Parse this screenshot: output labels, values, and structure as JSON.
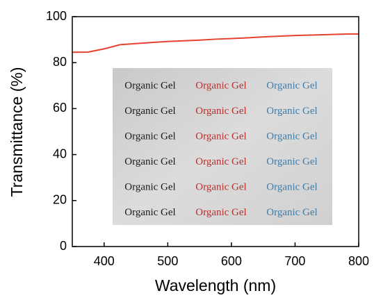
{
  "chart_data": {
    "type": "line",
    "xlabel": "Wavelength (nm)",
    "ylabel": "Transmittance (%)",
    "x": [
      350,
      375,
      400,
      425,
      450,
      475,
      500,
      525,
      550,
      575,
      600,
      625,
      650,
      675,
      700,
      725,
      750,
      775,
      800
    ],
    "series": [
      {
        "color": "#e8412f",
        "values": [
          84.5,
          84.6,
          86.0,
          87.8,
          88.3,
          88.8,
          89.2,
          89.5,
          89.8,
          90.2,
          90.5,
          90.8,
          91.2,
          91.5,
          91.8,
          92.0,
          92.2,
          92.4,
          92.5
        ]
      }
    ],
    "xlim": [
      350,
      800
    ],
    "xticks": [
      400,
      500,
      600,
      700,
      800
    ],
    "ylim": [
      0,
      100
    ],
    "yticks": [
      0,
      20,
      40,
      60,
      80,
      100
    ],
    "inset": {
      "rows": [
        [
          "Organic Gel",
          "Organic Gel",
          "Organic Gel"
        ],
        [
          "Organic Gel",
          "Organic Gel",
          "Organic Gel"
        ],
        [
          "Organic Gel",
          "Organic Gel",
          "Organic Gel"
        ],
        [
          "Organic Gel",
          "Organic Gel",
          "Organic Gel"
        ],
        [
          "Organic Gel",
          "Organic Gel",
          "Organic Gel"
        ],
        [
          "Organic Gel",
          "Organic Gel",
          "Organic Gel"
        ]
      ],
      "colors": [
        "#1a1a1a",
        "#b3302f",
        "#3f7ba6"
      ]
    }
  }
}
